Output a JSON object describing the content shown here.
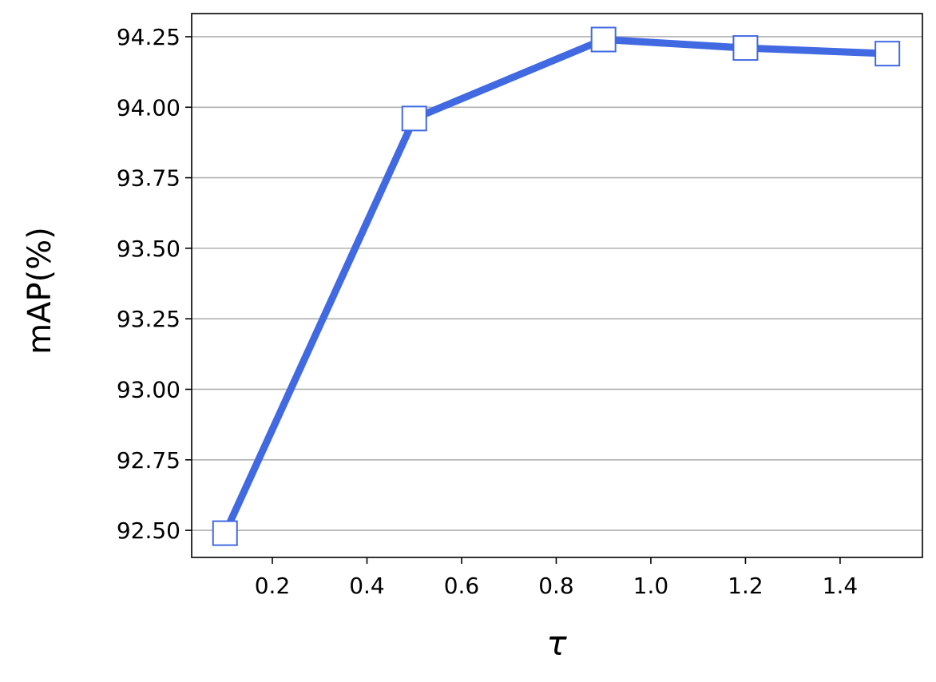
{
  "chart_data": {
    "type": "line",
    "xlabel": "τ",
    "ylabel": "mAP(%)",
    "x": [
      0.1,
      0.5,
      0.9,
      1.2,
      1.5
    ],
    "series": [
      {
        "color": "#4169e1",
        "values": [
          92.49,
          93.96,
          94.24,
          94.21,
          94.19
        ]
      }
    ],
    "marker": "square",
    "marker_face": "#ffffff",
    "xlim": [
      0.0295,
      1.574
    ],
    "xticks": [
      0.2,
      0.4,
      0.6,
      0.8,
      {
        "value": 1,
        "label": "1.0"
      },
      1.2,
      1.4
    ],
    "ylim": [
      92.404,
      94.332
    ],
    "yticks": [
      {
        "value": 92.5,
        "label": "92.50"
      },
      {
        "value": 92.75,
        "label": "92.75"
      },
      {
        "value": 93,
        "label": "93.00"
      },
      {
        "value": 93.25,
        "label": "93.25"
      },
      {
        "value": 93.5,
        "label": "93.50"
      },
      {
        "value": 93.75,
        "label": "93.75"
      },
      {
        "value": 94,
        "label": "94.00"
      },
      {
        "value": 94.25,
        "label": "94.25"
      }
    ],
    "grid": "y"
  }
}
